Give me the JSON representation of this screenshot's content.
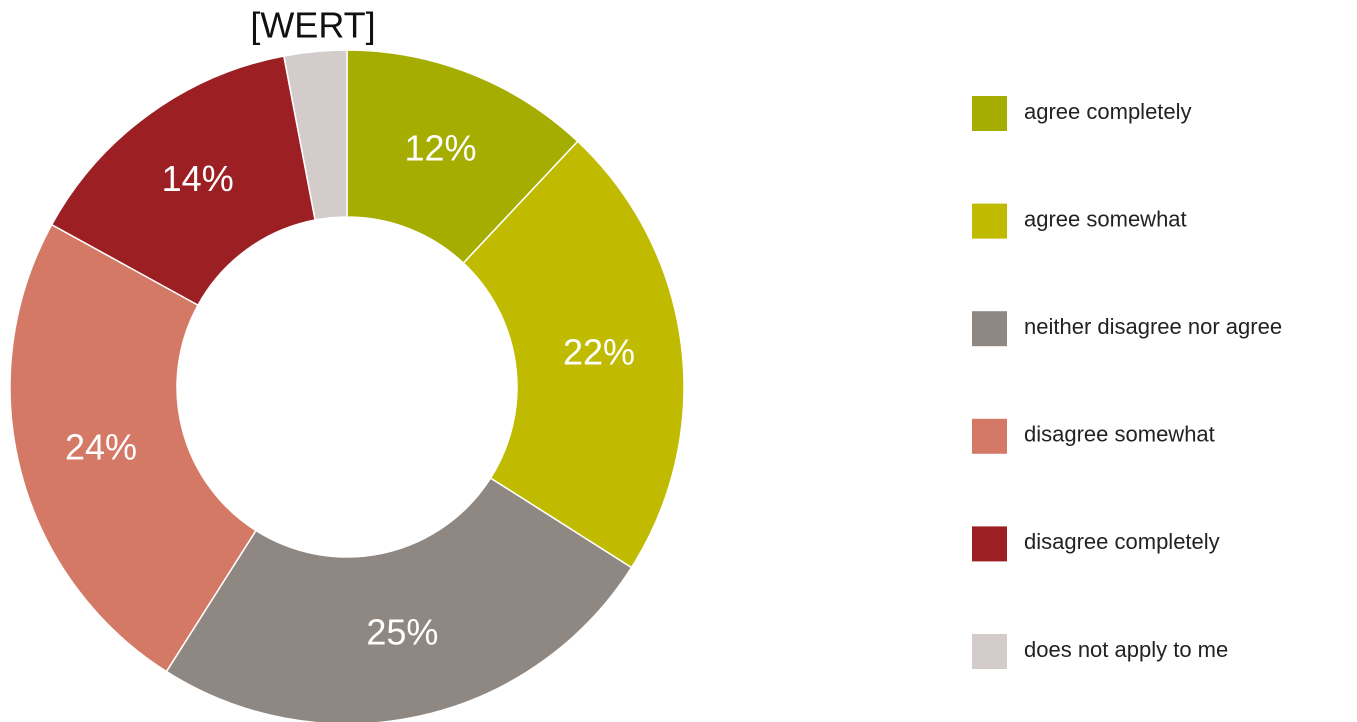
{
  "chart_data": {
    "type": "donut",
    "categories": [
      "agree completely",
      "agree somewhat",
      "neither disagree nor agree",
      "disagree somewhat",
      "disagree completely",
      "does not apply to me"
    ],
    "values": [
      12,
      22,
      25,
      24,
      14,
      3
    ],
    "value_labels": [
      "12%",
      "22%",
      "25%",
      "24%",
      "14%",
      "[WERT]"
    ],
    "colors": [
      "#a5ad00",
      "#c0bb00",
      "#8f8782",
      "#d47966",
      "#9c1f24",
      "#d3cccb"
    ],
    "legend": "right"
  }
}
